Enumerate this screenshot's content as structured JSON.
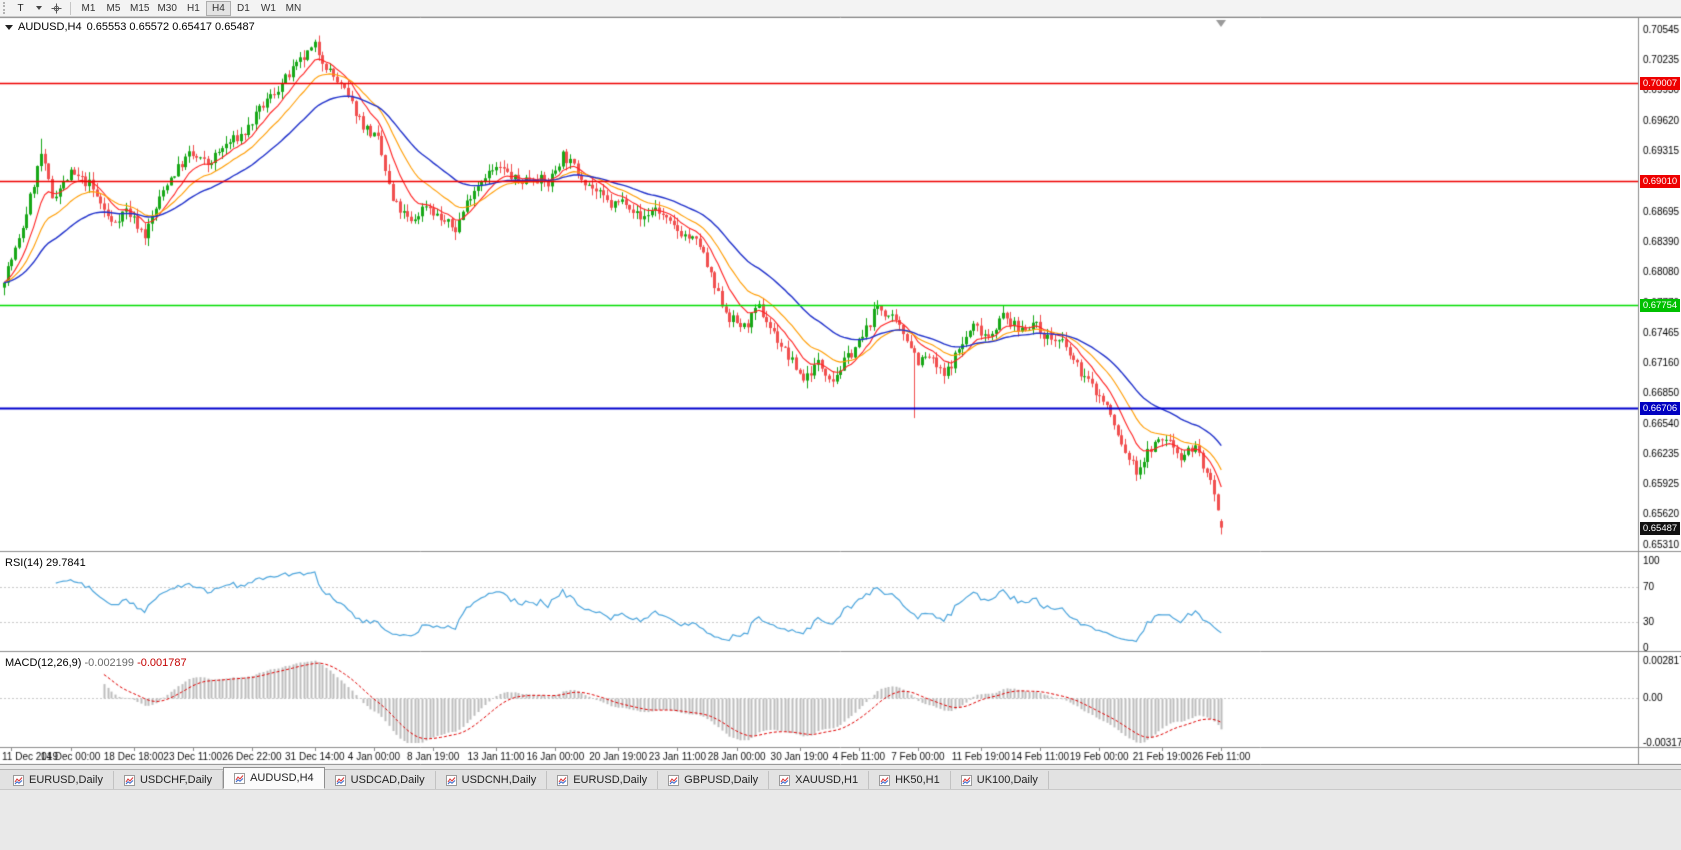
{
  "toolbar": {
    "text_tool_label": "T",
    "timeframes": [
      {
        "label": "M1",
        "active": false
      },
      {
        "label": "M5",
        "active": false
      },
      {
        "label": "M15",
        "active": false
      },
      {
        "label": "M30",
        "active": false
      },
      {
        "label": "H1",
        "active": false
      },
      {
        "label": "H4",
        "active": true
      },
      {
        "label": "D1",
        "active": false
      },
      {
        "label": "W1",
        "active": false
      },
      {
        "label": "MN",
        "active": false
      }
    ],
    "icons": [
      "text-tool-icon",
      "caret-down-icon",
      "crosshair-tool-icon"
    ]
  },
  "chart": {
    "title": "AUDUSD,H4",
    "ohlc": "0.65553 0.65572 0.65417 0.65487",
    "price_axis": [
      "0.70545",
      "0.70235",
      "0.69930",
      "0.69620",
      "0.69315",
      "0.69010",
      "0.68695",
      "0.68390",
      "0.68080",
      "0.67770",
      "0.67465",
      "0.67160",
      "0.66850",
      "0.66540",
      "0.66235",
      "0.65925",
      "0.65620",
      "0.65310"
    ],
    "hlines": [
      {
        "value": 0.70007,
        "label": "0.70007",
        "color": "#ee0000",
        "width": 1.4
      },
      {
        "value": 0.6901,
        "label": "0.69010",
        "color": "#ee0000",
        "width": 1.4
      },
      {
        "value": 0.67754,
        "label": "0.67754",
        "color": "#00dd00",
        "width": 1.6
      },
      {
        "value": 0.66706,
        "label": "0.66706",
        "color": "#0000cd",
        "width": 2.0
      }
    ],
    "badge_colors": [
      "#ee0000",
      "#ee0000",
      "#00c000",
      "#0000c0"
    ],
    "current_price": {
      "value": 0.65487,
      "label": "0.65487",
      "badge_color": "#111111"
    },
    "time_axis": [
      "11 Dec 2019",
      "14 Dec 00:00",
      "18 Dec 18:00",
      "23 Dec 11:00",
      "26 Dec 22:00",
      "31 Dec 14:00",
      "4 Jan 00:00",
      "8 Jan 19:00",
      "13 Jan 11:00",
      "16 Jan 00:00",
      "20 Jan 19:00",
      "23 Jan 11:00",
      "28 Jan 00:00",
      "30 Jan 19:00",
      "4 Feb 11:00",
      "7 Feb 00:00",
      "11 Feb 19:00",
      "14 Feb 11:00",
      "19 Feb 00:00",
      "21 Feb 19:00",
      "26 Feb 11:00"
    ]
  },
  "rsi": {
    "label": "RSI(14)",
    "value": "29.7841",
    "period": 14,
    "levels": [
      "100",
      "70",
      "30",
      "0"
    ],
    "level_values": [
      100,
      70,
      30,
      0
    ],
    "line_color": "#4ea6dd"
  },
  "macd": {
    "label": "MACD(12,26,9)",
    "value_main": "-0.002199",
    "value_signal": "-0.001787",
    "axis": [
      "0.002817",
      "0.00",
      "-0.003175"
    ],
    "axis_max": 0.002817,
    "axis_min": -0.003175,
    "hist_color": "#bdbdbd",
    "signal_color": "#e00000"
  },
  "tabbar": {
    "tabs": [
      {
        "label": "EURUSD,Daily",
        "active": false
      },
      {
        "label": "USDCHF,Daily",
        "active": false
      },
      {
        "label": "AUDUSD,H4",
        "active": true
      },
      {
        "label": "USDCAD,Daily",
        "active": false
      },
      {
        "label": "USDCNH,Daily",
        "active": false
      },
      {
        "label": "EURUSD,Daily",
        "active": false
      },
      {
        "label": "GBPUSD,Daily",
        "active": false
      },
      {
        "label": "XAUUSD,H1",
        "active": false
      },
      {
        "label": "HK50,H1",
        "active": false
      },
      {
        "label": "UK100,Daily",
        "active": false
      }
    ]
  },
  "chart_data": {
    "type": "candlestick",
    "symbol": "AUDUSD",
    "timeframe": "H4",
    "bars": 330,
    "price_top": 0.70545,
    "price_bottom": 0.6531,
    "last_bar": {
      "open": 0.65553,
      "high": 0.65572,
      "low": 0.65417,
      "close": 0.65487
    },
    "anchors": [
      [
        0,
        0.6803
      ],
      [
        4,
        0.684
      ],
      [
        10,
        0.6928
      ],
      [
        13,
        0.6885
      ],
      [
        18,
        0.6908
      ],
      [
        23,
        0.6898
      ],
      [
        29,
        0.6858
      ],
      [
        33,
        0.6872
      ],
      [
        38,
        0.6846
      ],
      [
        44,
        0.69
      ],
      [
        50,
        0.6928
      ],
      [
        55,
        0.6918
      ],
      [
        60,
        0.6938
      ],
      [
        65,
        0.695
      ],
      [
        70,
        0.6978
      ],
      [
        75,
        0.7
      ],
      [
        80,
        0.7022
      ],
      [
        84,
        0.7038
      ],
      [
        88,
        0.7012
      ],
      [
        92,
        0.6992
      ],
      [
        97,
        0.6958
      ],
      [
        101,
        0.6942
      ],
      [
        105,
        0.688
      ],
      [
        110,
        0.6858
      ],
      [
        114,
        0.6878
      ],
      [
        118,
        0.6862
      ],
      [
        122,
        0.6852
      ],
      [
        126,
        0.6888
      ],
      [
        130,
        0.6908
      ],
      [
        134,
        0.6914
      ],
      [
        139,
        0.69
      ],
      [
        143,
        0.6906
      ],
      [
        147,
        0.6898
      ],
      [
        151,
        0.6928
      ],
      [
        156,
        0.6906
      ],
      [
        160,
        0.689
      ],
      [
        164,
        0.6876
      ],
      [
        168,
        0.6882
      ],
      [
        172,
        0.6862
      ],
      [
        176,
        0.6874
      ],
      [
        180,
        0.6856
      ],
      [
        184,
        0.6846
      ],
      [
        188,
        0.6836
      ],
      [
        192,
        0.6792
      ],
      [
        196,
        0.6762
      ],
      [
        200,
        0.6752
      ],
      [
        204,
        0.6772
      ],
      [
        208,
        0.6746
      ],
      [
        212,
        0.6722
      ],
      [
        216,
        0.67
      ],
      [
        220,
        0.6716
      ],
      [
        224,
        0.67
      ],
      [
        228,
        0.6722
      ],
      [
        232,
        0.6742
      ],
      [
        236,
        0.6774
      ],
      [
        240,
        0.676
      ],
      [
        244,
        0.6742
      ],
      [
        247,
        0.6718
      ],
      [
        250,
        0.6722
      ],
      [
        254,
        0.6702
      ],
      [
        258,
        0.673
      ],
      [
        262,
        0.6754
      ],
      [
        266,
        0.6744
      ],
      [
        270,
        0.6764
      ],
      [
        274,
        0.675
      ],
      [
        278,
        0.6756
      ],
      [
        282,
        0.6742
      ],
      [
        286,
        0.6736
      ],
      [
        290,
        0.6712
      ],
      [
        294,
        0.6692
      ],
      [
        298,
        0.6672
      ],
      [
        302,
        0.6632
      ],
      [
        306,
        0.6606
      ],
      [
        310,
        0.663
      ],
      [
        314,
        0.664
      ],
      [
        318,
        0.6622
      ],
      [
        322,
        0.6632
      ],
      [
        326,
        0.6592
      ],
      [
        329,
        0.6549
      ]
    ],
    "spikes": [
      {
        "bar": 10,
        "high": 0.6944
      },
      {
        "bar": 246,
        "low": 0.666
      }
    ],
    "moving_averages": [
      {
        "period": 9,
        "color": "#ff2222"
      },
      {
        "period": 18,
        "color": "#ff9c00"
      },
      {
        "period": 36,
        "color": "#2233cc"
      }
    ],
    "up_color": "#17a817",
    "down_color": "#f14f4f"
  }
}
